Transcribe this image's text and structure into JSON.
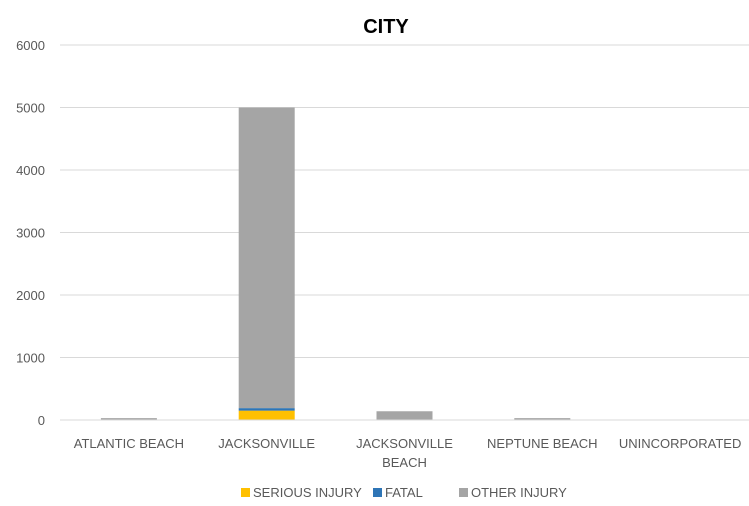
{
  "chart_data": {
    "type": "bar",
    "stacked": true,
    "title": "CITY",
    "categories": [
      "ATLANTIC BEACH",
      "JACKSONVILLE",
      "JACKSONVILLE BEACH",
      "NEPTUNE BEACH",
      "UNINCORPORATED"
    ],
    "category_lines": [
      [
        "ATLANTIC BEACH"
      ],
      [
        "JACKSONVILLE"
      ],
      [
        "JACKSONVILLE",
        "BEACH"
      ],
      [
        "NEPTUNE BEACH"
      ],
      [
        "UNINCORPORATED"
      ]
    ],
    "series": [
      {
        "name": "SERIOUS INJURY",
        "color": "#FFC000",
        "values": [
          2,
          150,
          5,
          1,
          0
        ]
      },
      {
        "name": "FATAL",
        "color": "#2E75B6",
        "values": [
          0,
          40,
          1,
          0,
          0
        ]
      },
      {
        "name": "OTHER INJURY",
        "color": "#A5A5A5",
        "values": [
          28,
          4810,
          134,
          29,
          5
        ]
      }
    ],
    "ylim": [
      0,
      6000
    ],
    "yticks": [
      0,
      1000,
      2000,
      3000,
      4000,
      5000,
      6000
    ],
    "grid": true,
    "legend": "bottom"
  }
}
